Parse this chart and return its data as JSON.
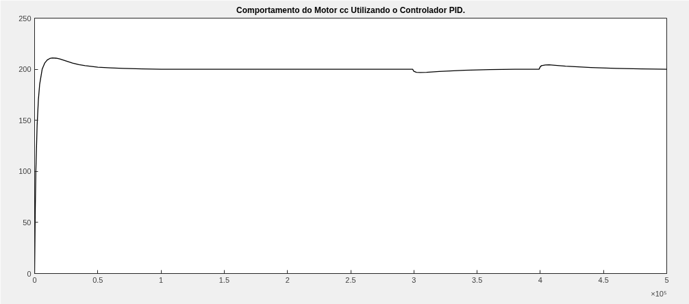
{
  "chart_data": {
    "type": "line",
    "title": "Comportamento do Motor cc Utilizando o Controlador PID.",
    "x": [
      0,
      0.005,
      0.01,
      0.02,
      0.03,
      0.04,
      0.06,
      0.08,
      0.1,
      0.12,
      0.14,
      0.17,
      0.2,
      0.25,
      0.3,
      0.35,
      0.4,
      0.5,
      0.6,
      0.7,
      0.85,
      1,
      2,
      2.99,
      3,
      3.02,
      3.05,
      3.1,
      3.2,
      3.4,
      3.6,
      3.8,
      3.99,
      4,
      4.01,
      4.04,
      4.07,
      4.1,
      4.2,
      4.4,
      4.6,
      4.8,
      5
    ],
    "series": [
      {
        "color": "#000000",
        "values": [
          0,
          60,
          100,
          145,
          170,
          185,
          200,
          206,
          209,
          210.5,
          211,
          210.8,
          210,
          208,
          206,
          204.5,
          203.5,
          202,
          201.3,
          200.8,
          200.3,
          200,
          200,
          200,
          198,
          197,
          196.8,
          197,
          197.8,
          199,
          199.6,
          200,
          200,
          202.5,
          203.5,
          204.2,
          204.3,
          204,
          203,
          201.7,
          200.8,
          200.3,
          200
        ]
      }
    ],
    "xlim": [
      0,
      5
    ],
    "xticks": [
      0,
      0.5,
      1,
      1.5,
      2,
      2.5,
      3,
      3.5,
      4,
      4.5,
      5
    ],
    "ylim": [
      0,
      250
    ],
    "yticks": [
      0,
      50,
      100,
      150,
      200,
      250
    ],
    "grid": false,
    "marker": "none",
    "line_style": "solid",
    "annotations": [
      "×10⁵"
    ]
  }
}
